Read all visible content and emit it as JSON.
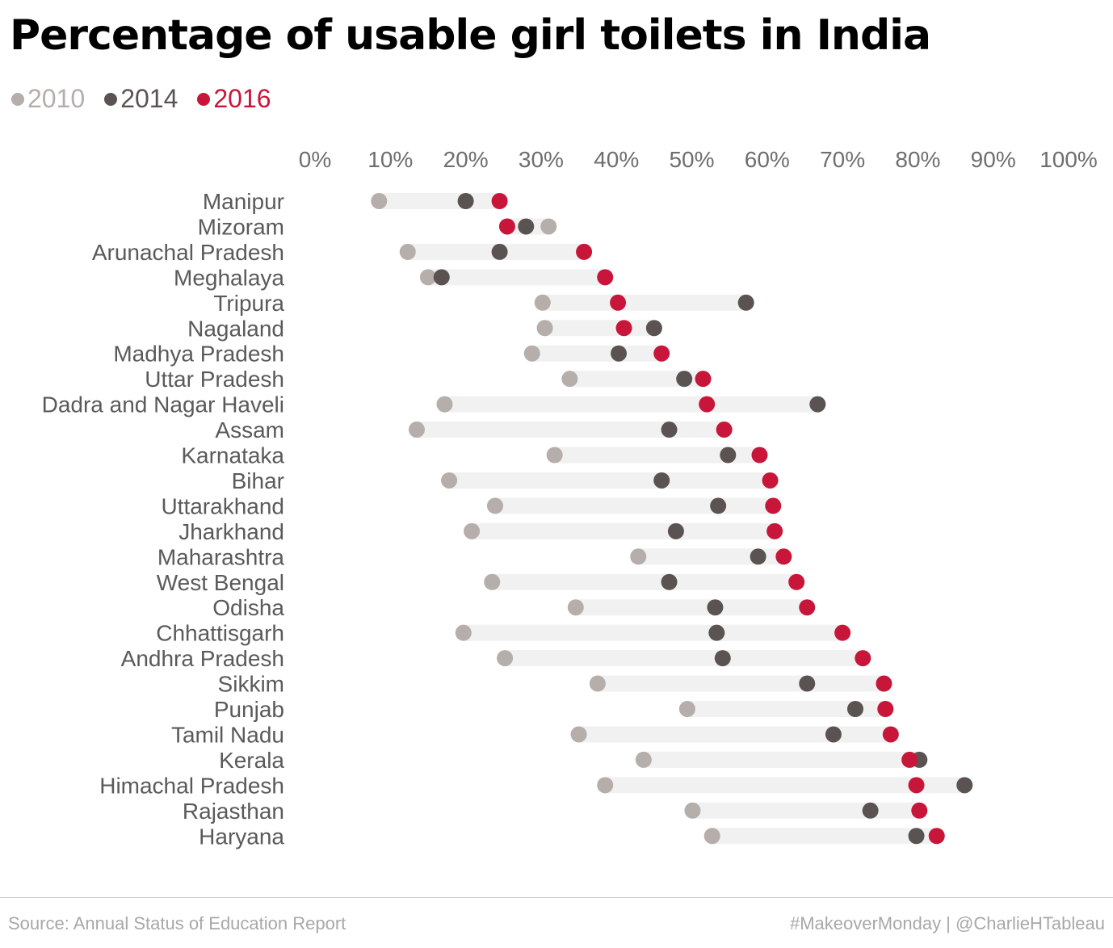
{
  "chart_data": {
    "type": "dot-plot",
    "title": "Percentage of usable girl toilets in India",
    "source": "Source: Annual Status of Education Report",
    "credit": "#MakeoverMonday | @CharlieHTableau",
    "xlim": [
      0,
      100
    ],
    "x_ticks": [
      "0%",
      "10%",
      "20%",
      "30%",
      "40%",
      "50%",
      "60%",
      "70%",
      "80%",
      "90%",
      "100%"
    ],
    "legend": [
      {
        "name": "2010",
        "color": "#b5aeab"
      },
      {
        "name": "2014",
        "color": "#5b5352"
      },
      {
        "name": "2016",
        "color": "#c8163a"
      }
    ],
    "series_names": [
      "2010",
      "2014",
      "2016"
    ],
    "rows": [
      {
        "state": "Manipur",
        "values": [
          8.5,
          20.0,
          24.5
        ]
      },
      {
        "state": "Mizoram",
        "values": [
          31.0,
          28.0,
          25.5
        ]
      },
      {
        "state": "Arunachal Pradesh",
        "values": [
          12.3,
          24.5,
          35.7
        ]
      },
      {
        "state": "Meghalaya",
        "values": [
          15.0,
          16.8,
          38.5
        ]
      },
      {
        "state": "Tripura",
        "values": [
          30.2,
          57.2,
          40.2
        ]
      },
      {
        "state": "Nagaland",
        "values": [
          30.5,
          45.0,
          41.0
        ]
      },
      {
        "state": "Madhya Pradesh",
        "values": [
          28.8,
          40.3,
          46.0
        ]
      },
      {
        "state": "Uttar Pradesh",
        "values": [
          33.8,
          49.0,
          51.5
        ]
      },
      {
        "state": "Dadra and Nagar Haveli",
        "values": [
          17.2,
          66.7,
          52.0
        ]
      },
      {
        "state": "Assam",
        "values": [
          13.5,
          47.0,
          54.3
        ]
      },
      {
        "state": "Karnataka",
        "values": [
          31.8,
          54.8,
          59.0
        ]
      },
      {
        "state": "Bihar",
        "values": [
          17.8,
          46.0,
          60.4
        ]
      },
      {
        "state": "Uttarakhand",
        "values": [
          23.9,
          53.5,
          60.8
        ]
      },
      {
        "state": "Jharkhand",
        "values": [
          20.8,
          47.9,
          61.0
        ]
      },
      {
        "state": "Maharashtra",
        "values": [
          42.9,
          58.8,
          62.2
        ]
      },
      {
        "state": "West Bengal",
        "values": [
          23.5,
          47.0,
          63.9
        ]
      },
      {
        "state": "Odisha",
        "values": [
          34.6,
          53.1,
          65.3
        ]
      },
      {
        "state": "Chhattisgarh",
        "values": [
          19.7,
          53.3,
          70.0
        ]
      },
      {
        "state": "Andhra Pradesh",
        "values": [
          25.2,
          54.1,
          72.7
        ]
      },
      {
        "state": "Sikkim",
        "values": [
          37.5,
          65.3,
          75.5
        ]
      },
      {
        "state": "Punjab",
        "values": [
          49.4,
          71.7,
          75.7
        ]
      },
      {
        "state": "Tamil Nadu",
        "values": [
          35.0,
          68.8,
          76.4
        ]
      },
      {
        "state": "Kerala",
        "values": [
          43.6,
          80.2,
          78.9
        ]
      },
      {
        "state": "Himachal Pradesh",
        "values": [
          38.5,
          86.2,
          79.8
        ]
      },
      {
        "state": "Rajasthan",
        "values": [
          50.1,
          73.7,
          80.2
        ]
      },
      {
        "state": "Haryana",
        "values": [
          52.7,
          79.8,
          82.5
        ]
      }
    ]
  }
}
